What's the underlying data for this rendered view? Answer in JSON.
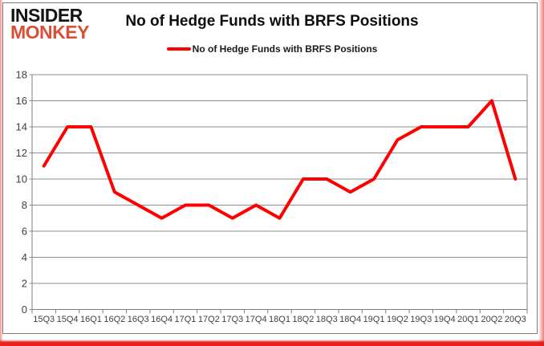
{
  "logo": {
    "line1": "INSIDER",
    "line2": "MONKEY",
    "line1_color": "#141414",
    "line2_color": "#d94f38"
  },
  "header": {
    "title": "No of Hedge Funds with BRFS Positions"
  },
  "legend": {
    "label": "No of Hedge Funds with BRFS Positions",
    "swatch_color": "#ff0000"
  },
  "frame": {
    "panel_border_color": "#7f7f7f",
    "glow_color": "#e9211c"
  },
  "chart_data": {
    "type": "line",
    "title": "No of Hedge Funds with BRFS Positions",
    "categories": [
      "15Q3",
      "15Q4",
      "16Q1",
      "16Q2",
      "16Q3",
      "16Q4",
      "17Q1",
      "17Q2",
      "17Q3",
      "17Q4",
      "18Q1",
      "18Q2",
      "18Q3",
      "18Q4",
      "19Q1",
      "19Q2",
      "19Q3",
      "19Q4",
      "20Q1",
      "20Q2",
      "20Q3"
    ],
    "series": [
      {
        "name": "No of Hedge Funds with BRFS Positions",
        "values": [
          11,
          14,
          14,
          9,
          8,
          7,
          8,
          8,
          7,
          8,
          7,
          10,
          10,
          9,
          10,
          13,
          14,
          14,
          14,
          16,
          10
        ]
      }
    ],
    "xlabel": "",
    "ylabel": "",
    "ylim": [
      0,
      18
    ],
    "ytick_step": 2,
    "grid": true,
    "legend_position": "top",
    "line_color": "#ff0000",
    "gridline_color": "#8f8f8f",
    "axis_color": "#7f7f7f",
    "tick_label_color": "#404040"
  }
}
